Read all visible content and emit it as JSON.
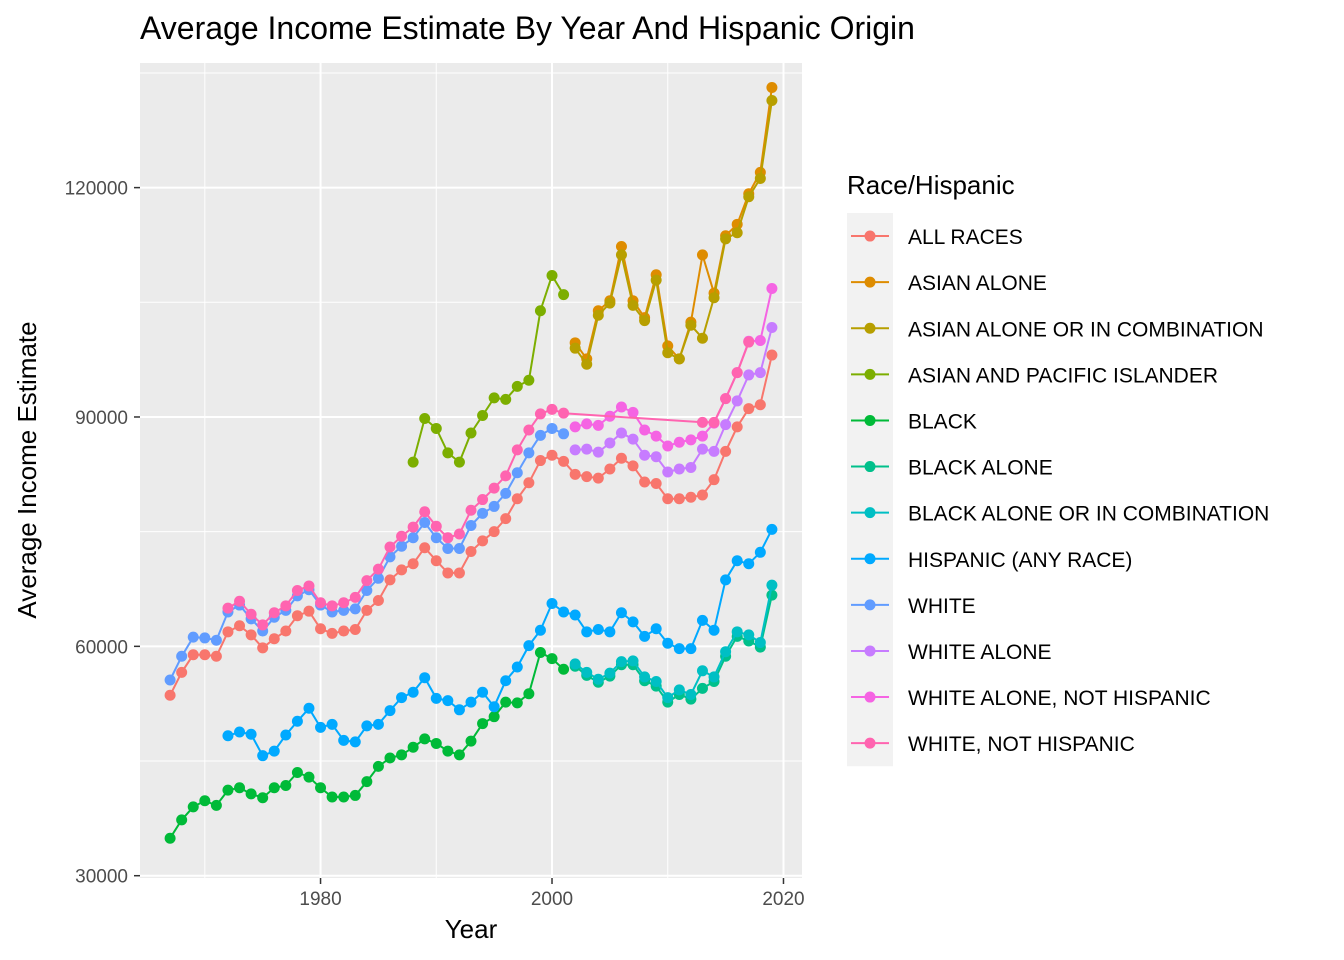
{
  "chart_data": {
    "type": "line",
    "title": "Average Income Estimate By Year And Hispanic Origin",
    "xlabel": "Year",
    "ylabel": "Average Income Estimate",
    "xlim": [
      1967,
      2019
    ],
    "ylim": [
      30000,
      136000
    ],
    "x_ticks": [
      1980,
      2000,
      2020
    ],
    "y_ticks": [
      30000,
      60000,
      90000,
      120000
    ],
    "grid": true,
    "legend_title": "Race/Hispanic",
    "legend_position": "right",
    "series": [
      {
        "name": "ALL RACES",
        "color": "#F8766D",
        "x": [
          1967,
          1968,
          1969,
          1970,
          1971,
          1972,
          1973,
          1974,
          1975,
          1976,
          1977,
          1978,
          1979,
          1980,
          1981,
          1982,
          1983,
          1984,
          1985,
          1986,
          1987,
          1988,
          1989,
          1990,
          1991,
          1992,
          1993,
          1994,
          1995,
          1996,
          1997,
          1998,
          1999,
          2000,
          2001,
          2002,
          2003,
          2004,
          2005,
          2006,
          2007,
          2008,
          2009,
          2010,
          2011,
          2012,
          2013,
          2014,
          2015,
          2016,
          2017,
          2018,
          2019
        ],
        "values": [
          53600,
          56600,
          58900,
          58900,
          58700,
          61900,
          62700,
          61500,
          59800,
          61000,
          62000,
          64000,
          64600,
          62300,
          61700,
          62000,
          62200,
          64700,
          66000,
          68700,
          70000,
          70800,
          72900,
          71200,
          69600,
          69600,
          72400,
          73800,
          75000,
          76700,
          79300,
          81400,
          84300,
          85000,
          84200,
          82500,
          82200,
          82000,
          83200,
          84600,
          83600,
          81500,
          81300,
          79300,
          79300,
          79500,
          79800,
          81800,
          85500,
          88700,
          91100,
          91600,
          98100
        ]
      },
      {
        "name": "ASIAN ALONE",
        "color": "#DE8C00",
        "x": [
          2002,
          2003,
          2004,
          2005,
          2006,
          2007,
          2008,
          2009,
          2010,
          2011,
          2012,
          2013,
          2014,
          2015,
          2016,
          2017,
          2018,
          2019
        ],
        "values": [
          99700,
          97600,
          103900,
          105200,
          112300,
          105200,
          103000,
          108600,
          99300,
          97600,
          102400,
          111200,
          106200,
          113700,
          115200,
          119200,
          122000,
          133100
        ]
      },
      {
        "name": "ASIAN ALONE OR IN COMBINATION",
        "color": "#B79F00",
        "x": [
          2002,
          2003,
          2004,
          2005,
          2006,
          2007,
          2008,
          2009,
          2010,
          2011,
          2012,
          2013,
          2014,
          2015,
          2016,
          2017,
          2018,
          2019
        ],
        "values": [
          99000,
          96900,
          103300,
          104900,
          111200,
          104600,
          102600,
          107900,
          98400,
          97600,
          102000,
          100300,
          105600,
          113300,
          114100,
          118800,
          121200,
          131400
        ]
      },
      {
        "name": "ASIAN AND PACIFIC ISLANDER",
        "color": "#7CAE00",
        "x": [
          1988,
          1989,
          1990,
          1991,
          1992,
          1993,
          1994,
          1995,
          1996,
          1997,
          1998,
          1999,
          2000,
          2001
        ],
        "values": [
          84100,
          89800,
          88500,
          85300,
          84100,
          87900,
          90200,
          92500,
          92300,
          94000,
          94800,
          103900,
          108500,
          106000
        ]
      },
      {
        "name": "BLACK",
        "color": "#00BA38",
        "x": [
          1967,
          1968,
          1969,
          1970,
          1971,
          1972,
          1973,
          1974,
          1975,
          1976,
          1977,
          1978,
          1979,
          1980,
          1981,
          1982,
          1983,
          1984,
          1985,
          1986,
          1987,
          1988,
          1989,
          1990,
          1991,
          1992,
          1993,
          1994,
          1995,
          1996,
          1997,
          1998,
          1999,
          2000,
          2001
        ],
        "values": [
          34900,
          37300,
          39000,
          39800,
          39200,
          41200,
          41500,
          40700,
          40200,
          41500,
          41800,
          43500,
          42900,
          41500,
          40300,
          40300,
          40500,
          42300,
          44300,
          45400,
          45800,
          46800,
          47900,
          47300,
          46300,
          45800,
          47600,
          49900,
          50800,
          52700,
          52600,
          53800,
          59200,
          58400,
          57000
        ]
      },
      {
        "name": "BLACK ALONE",
        "color": "#00C08B",
        "x": [
          2002,
          2003,
          2004,
          2005,
          2006,
          2007,
          2008,
          2009,
          2010,
          2011,
          2012,
          2013,
          2014,
          2015,
          2016,
          2017,
          2018,
          2019
        ],
        "values": [
          57400,
          56200,
          55300,
          56100,
          57600,
          57600,
          55500,
          54800,
          52700,
          53700,
          53100,
          54500,
          55400,
          58700,
          61300,
          60700,
          59900,
          66700
        ]
      },
      {
        "name": "BLACK ALONE OR IN COMBINATION",
        "color": "#00BFC4",
        "x": [
          2002,
          2003,
          2004,
          2005,
          2006,
          2007,
          2008,
          2009,
          2010,
          2011,
          2012,
          2013,
          2014,
          2015,
          2016,
          2017,
          2018,
          2019
        ],
        "values": [
          57700,
          56600,
          55700,
          56500,
          58000,
          58100,
          56000,
          55400,
          53300,
          54300,
          53700,
          56800,
          56000,
          59300,
          61900,
          61500,
          60500,
          68000
        ]
      },
      {
        "name": "HISPANIC (ANY RACE)",
        "color": "#00A9FF",
        "x": [
          1972,
          1973,
          1974,
          1975,
          1976,
          1977,
          1978,
          1979,
          1980,
          1981,
          1982,
          1983,
          1984,
          1985,
          1986,
          1987,
          1988,
          1989,
          1990,
          1991,
          1992,
          1993,
          1994,
          1995,
          1996,
          1997,
          1998,
          1999,
          2000,
          2001,
          2002,
          2003,
          2004,
          2005,
          2006,
          2007,
          2008,
          2009,
          2010,
          2011,
          2012,
          2013,
          2014,
          2015,
          2016,
          2017,
          2018,
          2019
        ],
        "values": [
          48300,
          48800,
          48500,
          45700,
          46300,
          48400,
          50200,
          51900,
          49400,
          49800,
          47700,
          47500,
          49600,
          49800,
          51600,
          53300,
          54000,
          55900,
          53200,
          52900,
          51700,
          52700,
          54000,
          52100,
          55500,
          57300,
          60100,
          62100,
          65600,
          64500,
          64100,
          61900,
          62200,
          61900,
          64400,
          63200,
          61300,
          62300,
          60400,
          59700,
          59700,
          63400,
          62100,
          68700,
          71200,
          70800,
          72300,
          75300
        ]
      },
      {
        "name": "WHITE",
        "color": "#619CFF",
        "x": [
          1967,
          1968,
          1969,
          1970,
          1971,
          1972,
          1973,
          1974,
          1975,
          1976,
          1977,
          1978,
          1979,
          1980,
          1981,
          1982,
          1983,
          1984,
          1985,
          1986,
          1987,
          1988,
          1989,
          1990,
          1991,
          1992,
          1993,
          1994,
          1995,
          1996,
          1997,
          1998,
          1999,
          2000,
          2001
        ],
        "values": [
          55600,
          58700,
          61200,
          61100,
          60800,
          64500,
          65400,
          63600,
          62000,
          63800,
          64700,
          66600,
          67400,
          65400,
          64500,
          64700,
          64900,
          67300,
          68900,
          71700,
          73100,
          74200,
          76200,
          74200,
          72800,
          72800,
          75800,
          77400,
          78300,
          80000,
          82700,
          85300,
          87600,
          88500,
          87800
        ]
      },
      {
        "name": "WHITE ALONE",
        "color": "#C77CFF",
        "x": [
          2002,
          2003,
          2004,
          2005,
          2006,
          2007,
          2008,
          2009,
          2010,
          2011,
          2012,
          2013,
          2014,
          2015,
          2016,
          2017,
          2018,
          2019
        ],
        "values": [
          85700,
          85800,
          85400,
          86600,
          87900,
          87100,
          85000,
          84800,
          82800,
          83200,
          83400,
          85800,
          85500,
          89000,
          92100,
          95500,
          95800,
          101700
        ]
      },
      {
        "name": "WHITE ALONE, NOT HISPANIC",
        "color": "#F564E3",
        "x": [
          2002,
          2003,
          2004,
          2005,
          2006,
          2007,
          2008,
          2009,
          2010,
          2011,
          2012,
          2013,
          2014,
          2015,
          2016,
          2017,
          2018,
          2019
        ],
        "values": [
          88700,
          89100,
          88900,
          90100,
          91300,
          90600,
          88300,
          87500,
          86200,
          86700,
          87000,
          87500,
          89200,
          92400,
          95800,
          99900,
          100000,
          106800
        ]
      },
      {
        "name": "WHITE, NOT HISPANIC",
        "color": "#FF64B0",
        "x": [
          1972,
          1973,
          1974,
          1975,
          1976,
          1977,
          1978,
          1979,
          1980,
          1981,
          1982,
          1983,
          1984,
          1985,
          1986,
          1987,
          1988,
          1989,
          1990,
          1991,
          1992,
          1993,
          1994,
          1995,
          1996,
          1997,
          1998,
          1999,
          2000,
          2001,
          2013,
          2014,
          2015,
          2016,
          2017
        ],
        "values": [
          65000,
          65900,
          64200,
          62800,
          64400,
          65300,
          67300,
          67900,
          65700,
          65300,
          65700,
          66400,
          68600,
          70100,
          73000,
          74400,
          75600,
          77600,
          75700,
          74200,
          74700,
          77800,
          79200,
          80700,
          82300,
          85700,
          88300,
          90400,
          91000,
          90500,
          89300,
          89300,
          92400,
          95800,
          99800
        ]
      }
    ]
  }
}
